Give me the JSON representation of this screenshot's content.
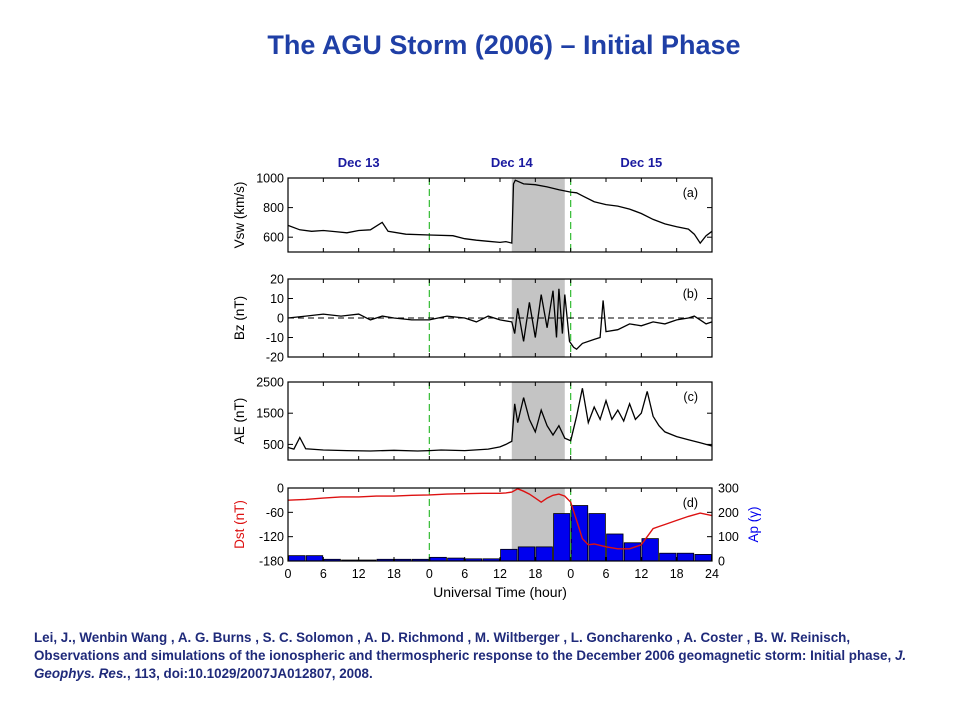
{
  "slide": {
    "title": "The AGU Storm (2006) – Initial Phase"
  },
  "citation": {
    "authors_pre": "Lei, J., Wenbin Wang , A. G. Burns , S. C. Solomon , A. D. Richmond , M. Wiltberger , L. Goncharenko , A. Coster , B. W. Reinisch, Observations and simulations of the ionospheric and thermospheric response to the December 2006 geomagnetic storm: Initial phase, ",
    "journal": "J. Geophys. Res.",
    "rest": ", 113, doi:10.1029/2007JA012807, 2008."
  },
  "colors": {
    "title": "#1f3fa6",
    "date_labels": "#1a1aa0",
    "data_line": "#000000",
    "shade": "#c4c4c4",
    "day_divider": "#33bb33",
    "dst_line": "#dd1111",
    "ap_bars": "#0000ee",
    "dst_axis": "#dd1111",
    "ap_axis": "#0000ee"
  },
  "chart_data": {
    "type": "line",
    "date_labels": [
      "Dec 13",
      "Dec 14",
      "Dec 15"
    ],
    "xlabel": "Universal Time (hour)",
    "x_ticks": [
      "0",
      "6",
      "12",
      "18",
      "0",
      "6",
      "12",
      "18",
      "0",
      "6",
      "12",
      "18",
      "24"
    ],
    "xlim_hours": [
      0,
      72
    ],
    "shaded_interval_hours": [
      38,
      47
    ],
    "day_boundaries_hours": [
      24,
      48
    ],
    "panels": [
      {
        "id": "a",
        "label": "(a)",
        "ylabel": "Vsw (km/s)",
        "ylim": [
          500,
          1000
        ],
        "yticks": [
          600,
          800,
          1000
        ],
        "series": [
          {
            "values": [
              [
                0,
                680
              ],
              [
                2,
                650
              ],
              [
                4,
                640
              ],
              [
                6,
                645
              ],
              [
                8,
                638
              ],
              [
                10,
                630
              ],
              [
                12,
                645
              ],
              [
                14,
                650
              ],
              [
                16,
                700
              ],
              [
                17,
                640
              ],
              [
                20,
                620
              ],
              [
                24,
                615
              ],
              [
                28,
                610
              ],
              [
                30,
                590
              ],
              [
                32,
                580
              ],
              [
                34,
                572
              ],
              [
                36,
                565
              ],
              [
                37,
                570
              ],
              [
                38,
                560
              ],
              [
                38.3,
                960
              ],
              [
                38.6,
                985
              ],
              [
                40,
                960
              ],
              [
                42,
                955
              ],
              [
                44,
                940
              ],
              [
                46,
                920
              ],
              [
                48,
                905
              ],
              [
                49,
                900
              ],
              [
                50,
                880
              ],
              [
                52,
                840
              ],
              [
                54,
                820
              ],
              [
                56,
                810
              ],
              [
                58,
                790
              ],
              [
                60,
                760
              ],
              [
                62,
                720
              ],
              [
                64,
                690
              ],
              [
                66,
                670
              ],
              [
                68,
                655
              ],
              [
                69,
                620
              ],
              [
                70,
                560
              ],
              [
                71,
                610
              ],
              [
                72,
                640
              ]
            ]
          }
        ]
      },
      {
        "id": "b",
        "label": "(b)",
        "ylabel": "Bz (nT)",
        "ylim": [
          -20,
          20
        ],
        "yticks": [
          -20,
          -10,
          0,
          10,
          20
        ],
        "zero_dashed": true,
        "series": [
          {
            "values": [
              [
                0,
                0
              ],
              [
                3,
                1
              ],
              [
                6,
                2
              ],
              [
                9,
                1
              ],
              [
                12,
                2
              ],
              [
                14,
                -1
              ],
              [
                16,
                1
              ],
              [
                18,
                0
              ],
              [
                21,
                -1
              ],
              [
                24,
                -1
              ],
              [
                27,
                1
              ],
              [
                30,
                0
              ],
              [
                32,
                -2
              ],
              [
                34,
                1
              ],
              [
                36,
                -1
              ],
              [
                38,
                -2
              ],
              [
                38.5,
                -8
              ],
              [
                39,
                5
              ],
              [
                40,
                -12
              ],
              [
                41,
                8
              ],
              [
                42,
                -10
              ],
              [
                43,
                12
              ],
              [
                44,
                -5
              ],
              [
                45,
                14
              ],
              [
                45.6,
                -10
              ],
              [
                46,
                15
              ],
              [
                46.6,
                -8
              ],
              [
                47,
                12
              ],
              [
                47.8,
                -12
              ],
              [
                48.5,
                -15
              ],
              [
                49,
                -16
              ],
              [
                50,
                -13
              ],
              [
                52,
                -11
              ],
              [
                53,
                -10
              ],
              [
                53.5,
                9
              ],
              [
                54,
                -7
              ],
              [
                56,
                -6
              ],
              [
                58,
                -3
              ],
              [
                60,
                -4
              ],
              [
                62,
                -2
              ],
              [
                64,
                -3
              ],
              [
                66,
                -1
              ],
              [
                68,
                0
              ],
              [
                69,
                1
              ],
              [
                70,
                -1
              ],
              [
                71,
                -3
              ],
              [
                72,
                -2
              ]
            ]
          }
        ]
      },
      {
        "id": "c",
        "label": "(c)",
        "ylabel": "AE (nT)",
        "ylim": [
          0,
          2500
        ],
        "yticks": [
          500,
          1500,
          2500
        ],
        "series": [
          {
            "values": [
              [
                0,
                400
              ],
              [
                1,
                350
              ],
              [
                2,
                720
              ],
              [
                3,
                360
              ],
              [
                6,
                320
              ],
              [
                10,
                300
              ],
              [
                14,
                290
              ],
              [
                18,
                310
              ],
              [
                22,
                290
              ],
              [
                24,
                300
              ],
              [
                26,
                320
              ],
              [
                30,
                300
              ],
              [
                34,
                350
              ],
              [
                36,
                420
              ],
              [
                37,
                500
              ],
              [
                38,
                600
              ],
              [
                38.5,
                1800
              ],
              [
                39,
                1200
              ],
              [
                40,
                2000
              ],
              [
                41,
                1300
              ],
              [
                42,
                900
              ],
              [
                43,
                1600
              ],
              [
                44,
                1100
              ],
              [
                45,
                800
              ],
              [
                46,
                1100
              ],
              [
                47,
                700
              ],
              [
                48,
                620
              ],
              [
                49,
                1400
              ],
              [
                50,
                2300
              ],
              [
                51,
                1200
              ],
              [
                52,
                1700
              ],
              [
                53,
                1300
              ],
              [
                54,
                1900
              ],
              [
                55,
                1300
              ],
              [
                56,
                1600
              ],
              [
                57,
                1250
              ],
              [
                58,
                1800
              ],
              [
                59,
                1300
              ],
              [
                60,
                1500
              ],
              [
                61,
                2200
              ],
              [
                62,
                1400
              ],
              [
                63,
                1100
              ],
              [
                64,
                900
              ],
              [
                66,
                750
              ],
              [
                68,
                650
              ],
              [
                70,
                550
              ],
              [
                72,
                450
              ]
            ]
          }
        ]
      },
      {
        "id": "d",
        "label": "(d)",
        "ylabel": "Dst (nT)",
        "ylim": [
          -180,
          0
        ],
        "yticks": [
          -180,
          -120,
          -60,
          0
        ],
        "ylabel_right": "Ap (γ)",
        "ylim_right": [
          0,
          300
        ],
        "yticks_right": [
          0,
          100,
          200,
          300
        ],
        "series": [
          {
            "name": "Dst",
            "values": [
              [
                0,
                -30
              ],
              [
                3,
                -28
              ],
              [
                6,
                -25
              ],
              [
                9,
                -22
              ],
              [
                12,
                -22
              ],
              [
                15,
                -20
              ],
              [
                18,
                -20
              ],
              [
                21,
                -18
              ],
              [
                24,
                -17
              ],
              [
                27,
                -15
              ],
              [
                30,
                -14
              ],
              [
                33,
                -13
              ],
              [
                36,
                -13
              ],
              [
                37,
                -12
              ],
              [
                38,
                -10
              ],
              [
                39,
                -2
              ],
              [
                40,
                -8
              ],
              [
                41,
                -15
              ],
              [
                42,
                -25
              ],
              [
                43,
                -35
              ],
              [
                44,
                -25
              ],
              [
                45,
                -18
              ],
              [
                46,
                -15
              ],
              [
                47,
                -20
              ],
              [
                48,
                -35
              ],
              [
                49,
                -80
              ],
              [
                50,
                -125
              ],
              [
                51,
                -140
              ],
              [
                52,
                -138
              ],
              [
                54,
                -145
              ],
              [
                56,
                -150
              ],
              [
                58,
                -150
              ],
              [
                60,
                -140
              ],
              [
                61,
                -120
              ],
              [
                62,
                -100
              ],
              [
                63,
                -95
              ],
              [
                64,
                -90
              ],
              [
                66,
                -80
              ],
              [
                68,
                -70
              ],
              [
                70,
                -62
              ],
              [
                72,
                -68
              ]
            ]
          },
          {
            "name": "Ap",
            "type": "bar",
            "bar_width_hours": 3,
            "categories": [
              0,
              3,
              6,
              9,
              12,
              15,
              18,
              21,
              24,
              27,
              30,
              33,
              36,
              39,
              42,
              45,
              48,
              51,
              54,
              57,
              60,
              63,
              66,
              69
            ],
            "values": [
              22,
              22,
              7,
              4,
              4,
              7,
              7,
              7,
              15,
              12,
              9,
              9,
              48,
              58,
              58,
              195,
              228,
              195,
              111,
              75,
              92,
              32,
              32,
              27
            ]
          }
        ]
      }
    ]
  }
}
